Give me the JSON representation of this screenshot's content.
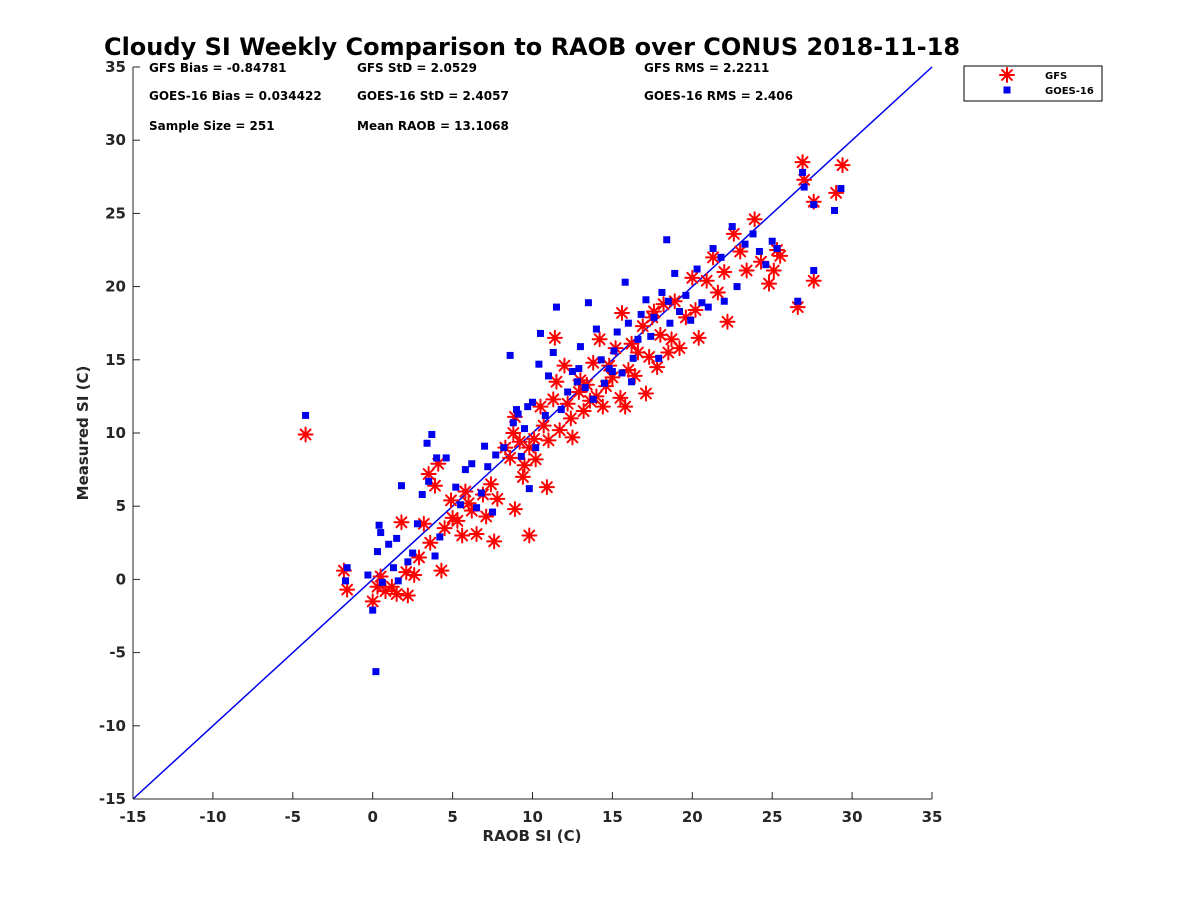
{
  "chart_data": {
    "type": "scatter",
    "title": "Cloudy SI Weekly Comparison to RAOB over CONUS 2018-11-18",
    "xlabel": "RAOB SI (C)",
    "ylabel": "Measured SI (C)",
    "xlim": [
      -15,
      35
    ],
    "ylim": [
      -15,
      35
    ],
    "xticks": [
      -15,
      -10,
      -5,
      0,
      5,
      10,
      15,
      20,
      25,
      30,
      35
    ],
    "yticks": [
      -15,
      -10,
      -5,
      0,
      5,
      10,
      15,
      20,
      25,
      30,
      35
    ],
    "grid": false,
    "legend_position": "top-right, outside plot area",
    "reference_line": {
      "label": "",
      "slope": 1,
      "intercept": 0,
      "color": "#0000ee"
    },
    "stats": [
      "GFS Bias = -0.84781",
      "GFS StD = 2.0529",
      "GFS RMS = 2.2211",
      "GOES-16 Bias = 0.034422",
      "GOES-16 StD = 2.4057",
      "GOES-16 RMS = 2.406",
      "Sample Size = 251",
      "Mean RAOB = 13.1068"
    ],
    "series": [
      {
        "name": "GFS",
        "marker": "asterisk",
        "color": "#ff0000",
        "points": [
          [
            -4.2,
            9.9
          ],
          [
            -1.8,
            0.6
          ],
          [
            -1.6,
            -0.7
          ],
          [
            0.0,
            -1.5
          ],
          [
            0.3,
            -0.5
          ],
          [
            0.5,
            0.2
          ],
          [
            0.8,
            -0.8
          ],
          [
            1.2,
            -0.5
          ],
          [
            1.5,
            -1.0
          ],
          [
            1.8,
            3.9
          ],
          [
            2.2,
            -1.1
          ],
          [
            2.6,
            0.3
          ],
          [
            2.9,
            1.5
          ],
          [
            3.2,
            3.8
          ],
          [
            3.5,
            7.2
          ],
          [
            3.6,
            2.5
          ],
          [
            3.9,
            6.4
          ],
          [
            4.1,
            7.9
          ],
          [
            4.3,
            0.6
          ],
          [
            4.5,
            3.5
          ],
          [
            4.9,
            5.4
          ],
          [
            5.3,
            4.0
          ],
          [
            5.6,
            3.0
          ],
          [
            5.8,
            6.0
          ],
          [
            6.2,
            4.7
          ],
          [
            6.5,
            3.1
          ],
          [
            6.9,
            5.8
          ],
          [
            7.1,
            4.3
          ],
          [
            7.4,
            6.5
          ],
          [
            7.6,
            2.6
          ],
          [
            7.8,
            5.5
          ],
          [
            8.3,
            9.0
          ],
          [
            8.6,
            8.3
          ],
          [
            8.8,
            10.0
          ],
          [
            8.9,
            11.1
          ],
          [
            8.9,
            4.8
          ],
          [
            9.2,
            9.4
          ],
          [
            9.4,
            7.0
          ],
          [
            9.5,
            7.8
          ],
          [
            9.8,
            3.0
          ],
          [
            9.8,
            9.0
          ],
          [
            10.2,
            8.2
          ],
          [
            10.5,
            11.8
          ],
          [
            10.7,
            10.5
          ],
          [
            10.9,
            6.3
          ],
          [
            11.0,
            9.5
          ],
          [
            11.3,
            12.3
          ],
          [
            11.4,
            16.5
          ],
          [
            11.5,
            13.5
          ],
          [
            11.7,
            10.2
          ],
          [
            12.0,
            14.6
          ],
          [
            12.2,
            12.0
          ],
          [
            12.4,
            11.0
          ],
          [
            12.5,
            9.7
          ],
          [
            12.9,
            12.8
          ],
          [
            13.2,
            11.5
          ],
          [
            13.4,
            13.3
          ],
          [
            13.6,
            12.2
          ],
          [
            13.8,
            14.8
          ],
          [
            14.0,
            12.5
          ],
          [
            14.2,
            16.4
          ],
          [
            14.4,
            11.8
          ],
          [
            14.6,
            13.2
          ],
          [
            14.8,
            14.6
          ],
          [
            15.0,
            13.8
          ],
          [
            15.2,
            15.8
          ],
          [
            15.5,
            12.4
          ],
          [
            15.6,
            18.2
          ],
          [
            15.8,
            11.8
          ],
          [
            16.0,
            14.3
          ],
          [
            16.2,
            16.1
          ],
          [
            16.4,
            13.9
          ],
          [
            16.6,
            15.5
          ],
          [
            16.9,
            17.3
          ],
          [
            17.1,
            12.7
          ],
          [
            17.3,
            15.2
          ],
          [
            17.5,
            17.9
          ],
          [
            17.8,
            14.5
          ],
          [
            18.0,
            16.7
          ],
          [
            18.2,
            18.8
          ],
          [
            18.5,
            15.5
          ],
          [
            18.7,
            16.4
          ],
          [
            18.9,
            19.0
          ],
          [
            19.2,
            15.8
          ],
          [
            19.6,
            17.9
          ],
          [
            20.0,
            20.6
          ],
          [
            20.2,
            18.4
          ],
          [
            20.4,
            16.5
          ],
          [
            20.9,
            20.4
          ],
          [
            21.3,
            22.0
          ],
          [
            21.6,
            19.6
          ],
          [
            22.0,
            21.0
          ],
          [
            22.2,
            17.6
          ],
          [
            22.6,
            23.6
          ],
          [
            23.0,
            22.4
          ],
          [
            23.4,
            21.1
          ],
          [
            23.9,
            24.6
          ],
          [
            24.3,
            21.7
          ],
          [
            24.8,
            20.2
          ],
          [
            25.1,
            21.1
          ],
          [
            25.3,
            22.5
          ],
          [
            25.5,
            22.1
          ],
          [
            26.6,
            18.6
          ],
          [
            26.9,
            28.5
          ],
          [
            27.0,
            27.3
          ],
          [
            27.6,
            25.8
          ],
          [
            27.6,
            20.4
          ],
          [
            29.0,
            26.4
          ],
          [
            29.4,
            28.3
          ],
          [
            2.1,
            0.5
          ],
          [
            5.0,
            4.2
          ],
          [
            6.0,
            5.2
          ],
          [
            10.1,
            9.6
          ],
          [
            13.0,
            13.6
          ],
          [
            17.6,
            18.3
          ]
        ]
      },
      {
        "name": "GOES-16",
        "marker": "square",
        "color": "#0000ee",
        "points": [
          [
            -4.2,
            11.2
          ],
          [
            -1.7,
            -0.1
          ],
          [
            -1.6,
            0.8
          ],
          [
            -0.3,
            0.3
          ],
          [
            0.0,
            -2.1
          ],
          [
            0.2,
            -6.3
          ],
          [
            0.3,
            1.9
          ],
          [
            0.4,
            3.7
          ],
          [
            0.5,
            3.2
          ],
          [
            0.6,
            -0.2
          ],
          [
            1.0,
            2.4
          ],
          [
            1.3,
            0.8
          ],
          [
            1.5,
            2.8
          ],
          [
            1.6,
            -0.1
          ],
          [
            1.8,
            6.4
          ],
          [
            2.2,
            1.2
          ],
          [
            2.5,
            1.8
          ],
          [
            2.8,
            3.8
          ],
          [
            3.1,
            5.8
          ],
          [
            3.4,
            9.3
          ],
          [
            3.5,
            6.7
          ],
          [
            3.7,
            9.9
          ],
          [
            3.9,
            1.6
          ],
          [
            4.0,
            8.3
          ],
          [
            4.2,
            2.9
          ],
          [
            4.6,
            8.3
          ],
          [
            5.2,
            6.3
          ],
          [
            5.5,
            5.1
          ],
          [
            5.8,
            7.5
          ],
          [
            6.2,
            7.9
          ],
          [
            6.5,
            4.9
          ],
          [
            6.8,
            5.9
          ],
          [
            7.0,
            9.1
          ],
          [
            7.2,
            7.7
          ],
          [
            7.5,
            4.6
          ],
          [
            7.7,
            8.5
          ],
          [
            8.2,
            9.0
          ],
          [
            8.6,
            15.3
          ],
          [
            8.8,
            10.7
          ],
          [
            9.0,
            11.6
          ],
          [
            9.3,
            8.4
          ],
          [
            9.5,
            10.3
          ],
          [
            9.7,
            11.8
          ],
          [
            9.8,
            6.2
          ],
          [
            10.0,
            12.1
          ],
          [
            10.2,
            9.0
          ],
          [
            10.4,
            14.7
          ],
          [
            10.5,
            16.8
          ],
          [
            10.8,
            11.2
          ],
          [
            11.0,
            13.9
          ],
          [
            11.3,
            15.5
          ],
          [
            11.5,
            18.6
          ],
          [
            11.8,
            11.6
          ],
          [
            12.2,
            12.8
          ],
          [
            12.5,
            14.2
          ],
          [
            12.8,
            13.5
          ],
          [
            13.0,
            15.9
          ],
          [
            13.3,
            13.1
          ],
          [
            13.5,
            18.9
          ],
          [
            13.8,
            12.3
          ],
          [
            14.0,
            17.1
          ],
          [
            14.3,
            15.0
          ],
          [
            14.5,
            13.4
          ],
          [
            14.8,
            14.4
          ],
          [
            15.1,
            15.6
          ],
          [
            15.3,
            16.9
          ],
          [
            15.6,
            14.1
          ],
          [
            15.8,
            20.3
          ],
          [
            16.0,
            17.5
          ],
          [
            16.3,
            15.1
          ],
          [
            16.6,
            16.4
          ],
          [
            16.8,
            18.1
          ],
          [
            17.1,
            19.1
          ],
          [
            17.4,
            16.6
          ],
          [
            17.6,
            17.9
          ],
          [
            17.9,
            15.1
          ],
          [
            18.1,
            19.6
          ],
          [
            18.4,
            23.2
          ],
          [
            18.6,
            17.5
          ],
          [
            18.9,
            20.9
          ],
          [
            19.2,
            18.3
          ],
          [
            19.6,
            19.4
          ],
          [
            19.9,
            17.7
          ],
          [
            20.3,
            21.2
          ],
          [
            20.6,
            18.9
          ],
          [
            21.0,
            18.6
          ],
          [
            21.3,
            22.6
          ],
          [
            21.8,
            22.0
          ],
          [
            22.0,
            19.0
          ],
          [
            22.5,
            24.1
          ],
          [
            22.8,
            20.0
          ],
          [
            23.3,
            22.9
          ],
          [
            23.8,
            23.6
          ],
          [
            24.2,
            22.4
          ],
          [
            24.6,
            21.5
          ],
          [
            25.0,
            23.1
          ],
          [
            25.3,
            22.6
          ],
          [
            26.6,
            19.0
          ],
          [
            26.9,
            27.8
          ],
          [
            27.0,
            26.8
          ],
          [
            27.6,
            25.6
          ],
          [
            27.6,
            21.1
          ],
          [
            28.9,
            25.2
          ],
          [
            29.3,
            26.7
          ],
          [
            9.1,
            11.3
          ],
          [
            12.9,
            14.4
          ],
          [
            16.2,
            13.5
          ],
          [
            18.5,
            19.0
          ],
          [
            15.0,
            14.2
          ]
        ]
      }
    ]
  }
}
